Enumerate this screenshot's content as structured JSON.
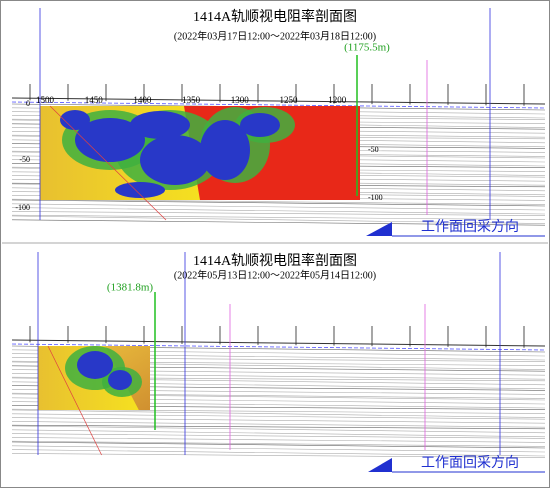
{
  "panels": [
    {
      "title": "1414A轨顺视电阻率剖面图",
      "subtitle": "(2022年03月17日12:00～2022年03月18日12:00)",
      "position": "(1175.5m)",
      "direction": "工作面回采方向",
      "distance_labels": [
        "1500",
        "1450",
        "1400",
        "1350",
        "1300",
        "1250",
        "1200"
      ],
      "depth_labels": [
        "0",
        "-50",
        "-100"
      ],
      "right_depth_labels": [
        "-50",
        "-100"
      ]
    },
    {
      "title": "1414A轨顺视电阻率剖面图",
      "subtitle": "(2022年05月13日12:00～2022年05月14日12:00)",
      "position": "(1381.8m)",
      "direction": "工作面回采方向"
    }
  ]
}
